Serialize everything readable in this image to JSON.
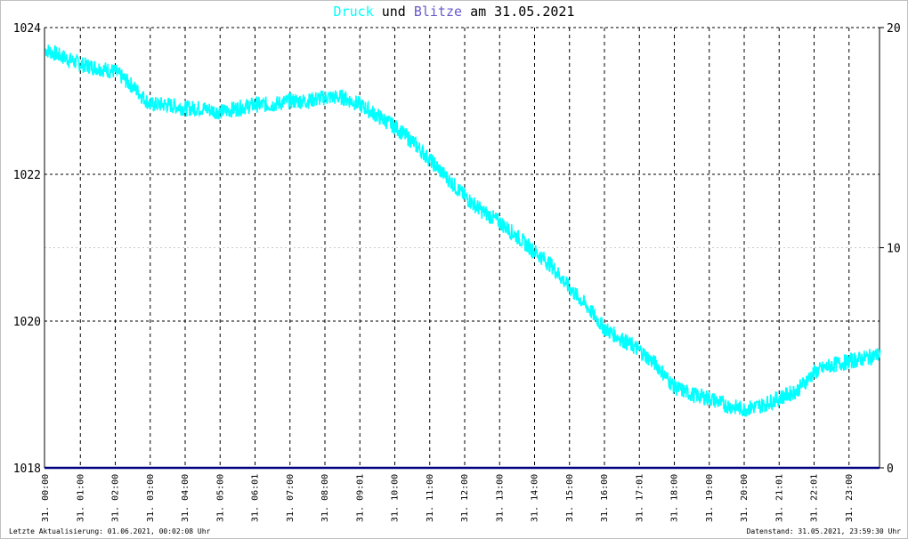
{
  "title": {
    "druck": "Druck",
    "und": "und",
    "blitze": "Blitze",
    "date_part": "am 31.05.2021"
  },
  "footer": {
    "left": "Letzte Aktualisierung: 01.06.2021, 00:02:08 Uhr",
    "right": "Datenstand: 31.05.2021, 23:59:30 Uhr"
  },
  "colors": {
    "pressure": "#00ffff",
    "lightning": "#6a5acd",
    "baseline": "#000080",
    "grid": "#000000",
    "grid_faint": "#c8c8c8"
  },
  "chart_data": {
    "type": "line",
    "grid": true,
    "y_left": {
      "min": 1018,
      "max": 1024,
      "ticks": [
        "1018",
        "1020",
        "1022",
        "1024"
      ]
    },
    "y_right": {
      "min": 0,
      "max": 20,
      "ticks": [
        "0",
        "10",
        "20"
      ]
    },
    "x_ticks": [
      "31. 00:00",
      "31. 01:00",
      "31. 02:00",
      "31. 03:00",
      "31. 04:00",
      "31. 05:00",
      "31. 06:01",
      "31. 07:00",
      "31. 08:00",
      "31. 09:01",
      "31. 10:00",
      "31. 11:00",
      "31. 12:00",
      "31. 13:00",
      "31. 14:00",
      "31. 15:00",
      "31. 16:00",
      "31. 17:01",
      "31. 18:00",
      "31. 19:00",
      "31. 20:00",
      "31. 21:01",
      "31. 22:01",
      "31. 23:00"
    ],
    "series": [
      {
        "name": "Druck",
        "axis": "left",
        "x_hours": [
          0,
          0.5,
          1,
          1.5,
          2,
          2.5,
          3,
          3.5,
          4,
          4.5,
          5,
          5.5,
          6,
          6.5,
          7,
          7.5,
          8,
          8.5,
          9,
          9.5,
          10,
          10.5,
          11,
          11.5,
          12,
          12.5,
          13,
          13.5,
          14,
          14.5,
          15,
          15.5,
          16,
          16.5,
          17,
          17.5,
          18,
          18.5,
          19,
          19.5,
          20,
          20.5,
          21,
          21.5,
          22,
          22.5,
          23,
          23.5,
          23.9
        ],
        "values": [
          1023.7,
          1023.6,
          1023.5,
          1023.45,
          1023.4,
          1023.2,
          1022.95,
          1022.95,
          1022.9,
          1022.9,
          1022.85,
          1022.9,
          1022.95,
          1022.95,
          1023.0,
          1023.0,
          1023.05,
          1023.05,
          1022.95,
          1022.8,
          1022.65,
          1022.45,
          1022.2,
          1021.95,
          1021.7,
          1021.5,
          1021.35,
          1021.15,
          1020.95,
          1020.75,
          1020.45,
          1020.2,
          1019.9,
          1019.75,
          1019.6,
          1019.4,
          1019.1,
          1019.0,
          1018.95,
          1018.85,
          1018.8,
          1018.85,
          1018.95,
          1019.05,
          1019.3,
          1019.4,
          1019.45,
          1019.5,
          1019.55
        ]
      },
      {
        "name": "Blitze",
        "axis": "right",
        "x_hours": [
          0,
          24
        ],
        "values": [
          0,
          0
        ]
      }
    ]
  }
}
